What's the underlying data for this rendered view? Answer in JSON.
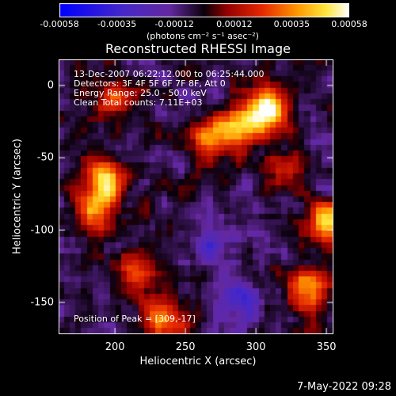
{
  "chart_data": {
    "type": "heatmap",
    "title": "Reconstructed RHESSI Image",
    "xlabel": "Heliocentric X (arcsec)",
    "ylabel": "Heliocentric Y (arcsec)",
    "xlim": [
      160,
      355
    ],
    "ylim": [
      -172,
      18
    ],
    "xticks": [
      "200",
      "250",
      "300",
      "350"
    ],
    "yticks": [
      "0",
      "-50",
      "-100",
      "-150"
    ],
    "colorbar": {
      "label": "(photons cm⁻² s⁻¹ asec⁻²)",
      "tick_labels": [
        "-0.00058",
        "-0.00035",
        "-0.00012",
        "0.00012",
        "0.00035",
        "0.00058"
      ],
      "range": [
        -0.00058,
        0.00058
      ]
    },
    "annotations": [
      "13-Dec-2007 06:22:12.000 to 06:25:44.000",
      "Detectors: 3F 4F 5F 6F 7F 8F, Att 0",
      "Energy Range: 25.0 - 50.0 keV",
      "Clean     Total counts: 7.11E+03"
    ],
    "peak_label": "Position of Peak = [309,-17]",
    "sources": [
      {
        "x": 309,
        "y": -17,
        "value": 0.00058
      },
      {
        "x": 290,
        "y": -28,
        "value": 0.0005
      },
      {
        "x": 270,
        "y": -38,
        "value": 0.0004
      },
      {
        "x": 195,
        "y": -65,
        "value": 0.00052
      },
      {
        "x": 185,
        "y": -85,
        "value": 0.0004
      },
      {
        "x": 350,
        "y": -95,
        "value": 0.00048
      },
      {
        "x": 338,
        "y": -140,
        "value": 0.00042
      },
      {
        "x": 235,
        "y": -160,
        "value": 0.0004
      },
      {
        "x": 200,
        "y": -10,
        "value": 0.00028
      },
      {
        "x": 320,
        "y": -60,
        "value": 0.0002
      },
      {
        "x": 215,
        "y": -130,
        "value": 0.0003
      },
      {
        "x": 270,
        "y": -110,
        "value": -0.0002
      },
      {
        "x": 290,
        "y": -150,
        "value": -0.0003
      }
    ]
  },
  "footer": "7-May-2022 09:28"
}
